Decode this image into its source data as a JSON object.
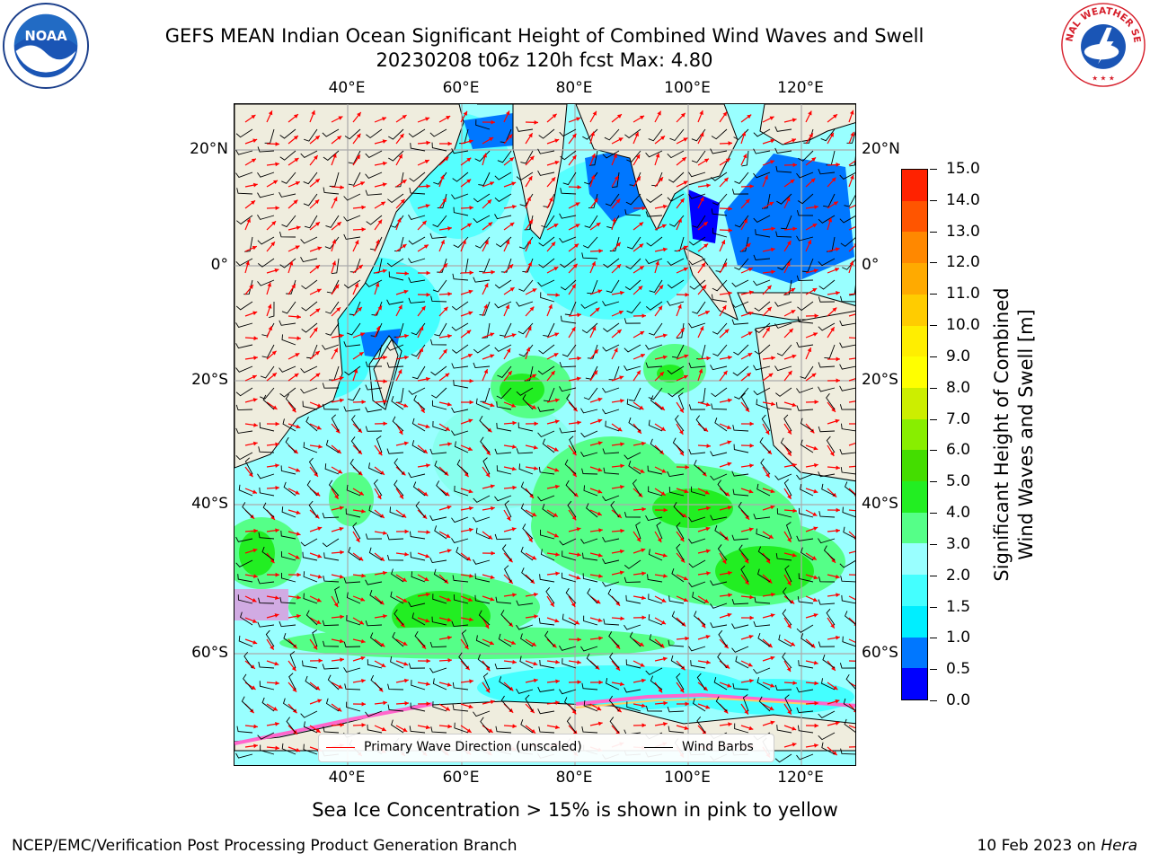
{
  "title": {
    "line1": "GEFS MEAN Indian Ocean Significant Height of Combined Wind Waves and Swell",
    "line2": "20230208 t06z 120h fcst   Max: 4.80"
  },
  "map": {
    "lon_ticks": [
      "40°E",
      "60°E",
      "80°E",
      "100°E",
      "120°E"
    ],
    "lat_ticks": [
      "20°N",
      "0°",
      "20°S",
      "40°S",
      "60°S"
    ],
    "lon_values": [
      40,
      60,
      80,
      100,
      120
    ],
    "lat_values": [
      20,
      0,
      -20,
      -40,
      -60
    ],
    "lon_range": [
      20,
      130
    ],
    "lat_range": [
      28,
      -81
    ],
    "land_color": "#efedde",
    "grid": true,
    "wave_arrow_color": "#ff0000",
    "wind_barb_color": "#000000"
  },
  "legend": {
    "wave_dir_label": "Primary Wave Direction (unscaled)",
    "wind_barbs_label": "Wind Barbs",
    "wave_dir_color": "#ff0000",
    "wind_barbs_color": "#000000"
  },
  "colorbar": {
    "label_line1": "Significant Height of Combined",
    "label_line2": "Wind Waves and Swell [m]",
    "ticks": [
      "0.0",
      "0.5",
      "1.0",
      "1.5",
      "2.0",
      "3.0",
      "4.0",
      "5.0",
      "6.0",
      "7.0",
      "8.0",
      "9.0",
      "10.0",
      "11.0",
      "12.0",
      "13.0",
      "14.0",
      "15.0"
    ],
    "colors": [
      "#0000ff",
      "#0077ff",
      "#00eeff",
      "#44ffff",
      "#99ffff",
      "#55ff88",
      "#22ee22",
      "#44dd00",
      "#88ee00",
      "#ccee00",
      "#ffff00",
      "#ffee00",
      "#ffcc00",
      "#ffaa00",
      "#ff8800",
      "#ff5500",
      "#ff2200"
    ]
  },
  "ice_note": "Sea Ice Concentration > 15% is shown in pink to yellow",
  "footer": {
    "left": "NCEP/EMC/Verification Post Processing Product Generation Branch",
    "right_date": "10 Feb 2023 on",
    "right_host": "Hera"
  },
  "logos": {
    "noaa_text": "NOAA",
    "nws_text": "NATIONAL WEATHER SERVICE"
  }
}
